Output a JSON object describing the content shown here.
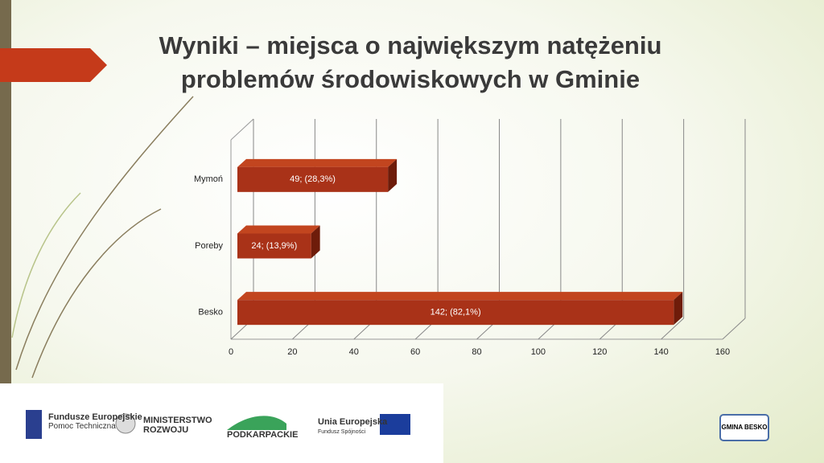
{
  "chart_data": {
    "type": "bar3d_horizontal",
    "title": "Wyniki – miejsca o największym natężeniu problemów środowiskowych w Gminie",
    "categories": [
      "Mymoń",
      "Poreby",
      "Besko"
    ],
    "values": [
      49,
      24,
      142
    ],
    "value_labels": [
      "49; (28,3%)",
      "24; (13,9%)",
      "142; (82,1%)"
    ],
    "color": "#a93218",
    "xlim": [
      0,
      160
    ],
    "xticks": [
      0,
      20,
      40,
      60,
      80,
      100,
      120,
      140,
      160
    ],
    "grid": true
  },
  "footer": {
    "logos": [
      {
        "title": "Fundusze Europejskie",
        "subtitle": "Pomoc Techniczna"
      },
      {
        "title": "MINISTERSTWO ROZWOJU"
      },
      {
        "title": "PODKARPACKIE"
      },
      {
        "title": "Unia Europejska",
        "subtitle": "Fundusz Spójności"
      },
      {
        "title": "GMINA BESKO"
      }
    ]
  }
}
